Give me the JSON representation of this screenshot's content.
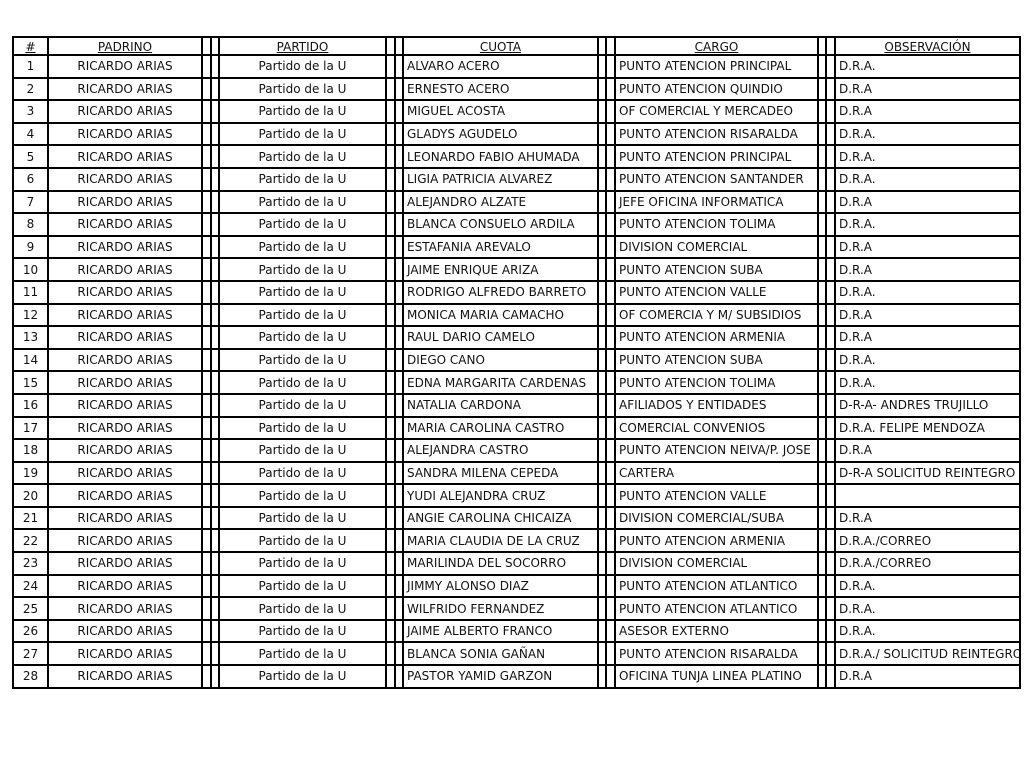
{
  "headers": {
    "num": "#",
    "padrino": "PADRINO",
    "partido": "PARTIDO",
    "cuota": "CUOTA",
    "cargo": "CARGO",
    "observacion": "OBSERVACIÓN"
  },
  "rows": [
    {
      "num": "1",
      "padrino": "RICARDO ARIAS",
      "partido": "Partido de la U",
      "cuota": "ALVARO  ACERO",
      "cargo": "PUNTO ATENCION PRINCIPAL",
      "observacion": "D.R.A."
    },
    {
      "num": "2",
      "padrino": "RICARDO ARIAS",
      "partido": "Partido de la U",
      "cuota": "ERNESTO  ACERO",
      "cargo": "PUNTO ATENCION QUINDIO",
      "observacion": "D.R.A"
    },
    {
      "num": "3",
      "padrino": "RICARDO ARIAS",
      "partido": "Partido de la U",
      "cuota": "MIGUEL  ACOSTA",
      "cargo": "OF COMERCIAL Y MERCADEO",
      "observacion": "D.R.A"
    },
    {
      "num": "4",
      "padrino": "RICARDO ARIAS",
      "partido": "Partido de la U",
      "cuota": "GLADYS  AGUDELO",
      "cargo": "PUNTO ATENCION RISARALDA",
      "observacion": "D.R.A."
    },
    {
      "num": "5",
      "padrino": "RICARDO ARIAS",
      "partido": "Partido de la U",
      "cuota": "LEONARDO FABIO AHUMADA",
      "cargo": "PUNTO ATENCION PRINCIPAL",
      "observacion": "D.R.A."
    },
    {
      "num": "6",
      "padrino": "RICARDO ARIAS",
      "partido": "Partido de la U",
      "cuota": "LIGIA PATRICIA ALVAREZ",
      "cargo": "PUNTO ATENCION SANTANDER",
      "observacion": "D.R.A."
    },
    {
      "num": "7",
      "padrino": "RICARDO ARIAS",
      "partido": "Partido de la U",
      "cuota": "ALEJANDRO  ALZATE",
      "cargo": "JEFE OFICINA INFORMATICA",
      "observacion": "D.R.A"
    },
    {
      "num": "8",
      "padrino": "RICARDO ARIAS",
      "partido": "Partido de la U",
      "cuota": "BLANCA CONSUELO ARDILA",
      "cargo": "PUNTO ATENCION TOLIMA",
      "observacion": "D.R.A."
    },
    {
      "num": "9",
      "padrino": "RICARDO ARIAS",
      "partido": "Partido de la U",
      "cuota": "ESTAFANIA  AREVALO",
      "cargo": "DIVISION COMERCIAL",
      "observacion": "D.R.A"
    },
    {
      "num": "10",
      "padrino": "RICARDO ARIAS",
      "partido": "Partido de la U",
      "cuota": "JAIME ENRIQUE ARIZA",
      "cargo": "PUNTO ATENCION SUBA",
      "observacion": "D.R.A"
    },
    {
      "num": "11",
      "padrino": "RICARDO ARIAS",
      "partido": "Partido de la U",
      "cuota": "RODRIGO ALFREDO BARRETO",
      "cargo": "PUNTO ATENCION VALLE",
      "observacion": "D.R.A."
    },
    {
      "num": "12",
      "padrino": "RICARDO ARIAS",
      "partido": "Partido de la U",
      "cuota": "MONICA MARIA CAMACHO",
      "cargo": "OF COMERCIA Y M/ SUBSIDIOS",
      "observacion": "D.R.A"
    },
    {
      "num": "13",
      "padrino": "RICARDO ARIAS",
      "partido": "Partido de la U",
      "cuota": "RAUL DARIO CAMELO",
      "cargo": "PUNTO ATENCION ARMENIA",
      "observacion": "D.R.A"
    },
    {
      "num": "14",
      "padrino": "RICARDO ARIAS",
      "partido": "Partido de la U",
      "cuota": "DIEGO   CANO",
      "cargo": "PUNTO ATENCION SUBA",
      "observacion": "D.R.A."
    },
    {
      "num": "15",
      "padrino": "RICARDO ARIAS",
      "partido": "Partido de la U",
      "cuota": "EDNA MARGARITA CARDENAS",
      "cargo": "PUNTO ATENCION TOLIMA",
      "observacion": "D.R.A."
    },
    {
      "num": "16",
      "padrino": "RICARDO ARIAS",
      "partido": "Partido de la U",
      "cuota": "NATALIA  CARDONA",
      "cargo": "AFILIADOS Y ENTIDADES",
      "observacion": "D-R-A- ANDRES TRUJILLO"
    },
    {
      "num": "17",
      "padrino": "RICARDO ARIAS",
      "partido": "Partido de la U",
      "cuota": "MARIA CAROLINA CASTRO",
      "cargo": "COMERCIAL CONVENIOS",
      "observacion": "D.R.A. FELIPE MENDOZA"
    },
    {
      "num": "18",
      "padrino": "RICARDO ARIAS",
      "partido": "Partido de la U",
      "cuota": "ALEJANDRA  CASTRO",
      "cargo": "PUNTO ATENCION NEIVA/P. JOSE",
      "observacion": "D.R.A"
    },
    {
      "num": "19",
      "padrino": "RICARDO ARIAS",
      "partido": "Partido de la U",
      "cuota": "SANDRA MILENA CEPEDA",
      "cargo": "CARTERA",
      "observacion": "D-R-A SOLICITUD REINTEGRO"
    },
    {
      "num": "20",
      "padrino": "RICARDO ARIAS",
      "partido": "Partido de la U",
      "cuota": "YUDI ALEJANDRA CRUZ",
      "cargo": "PUNTO ATENCION VALLE",
      "observacion": ""
    },
    {
      "num": "21",
      "padrino": "RICARDO ARIAS",
      "partido": "Partido de la U",
      "cuota": "ANGIE CAROLINA CHICAIZA",
      "cargo": "DIVISION COMERCIAL/SUBA",
      "observacion": "D.R.A"
    },
    {
      "num": "22",
      "padrino": "RICARDO ARIAS",
      "partido": "Partido de la U",
      "cuota": "MARIA  CLAUDIA  DE LA CRUZ",
      "cargo": "PUNTO ATENCION ARMENIA",
      "observacion": "D.R.A./CORREO"
    },
    {
      "num": "23",
      "padrino": "RICARDO ARIAS",
      "partido": "Partido de la U",
      "cuota": "MARILINDA DEL SOCORRO",
      "cargo": "DIVISION COMERCIAL",
      "observacion": "D.R.A./CORREO"
    },
    {
      "num": "24",
      "padrino": "RICARDO ARIAS",
      "partido": "Partido de la U",
      "cuota": "JIMMY ALONSO DIAZ",
      "cargo": "PUNTO ATENCION ATLANTICO",
      "observacion": "D.R.A."
    },
    {
      "num": "25",
      "padrino": "RICARDO ARIAS",
      "partido": "Partido de la U",
      "cuota": "WILFRIDO  FERNANDEZ",
      "cargo": "PUNTO ATENCION ATLANTICO",
      "observacion": "D.R.A."
    },
    {
      "num": "26",
      "padrino": "RICARDO ARIAS",
      "partido": "Partido de la U",
      "cuota": "JAIME ALBERTO FRANCO",
      "cargo": "ASESOR EXTERNO",
      "observacion": "D.R.A."
    },
    {
      "num": "27",
      "padrino": "RICARDO ARIAS",
      "partido": "Partido de la U",
      "cuota": "BLANCA SONIA GAÑAN",
      "cargo": "PUNTO ATENCION RISARALDA",
      "observacion": "D.R.A./ SOLICITUD REINTEGRO"
    },
    {
      "num": "28",
      "padrino": "RICARDO ARIAS",
      "partido": "Partido de la U",
      "cuota": "PASTOR YAMID GARZON",
      "cargo": "OFICINA TUNJA LINEA PLATINO",
      "observacion": "D.R.A"
    }
  ]
}
